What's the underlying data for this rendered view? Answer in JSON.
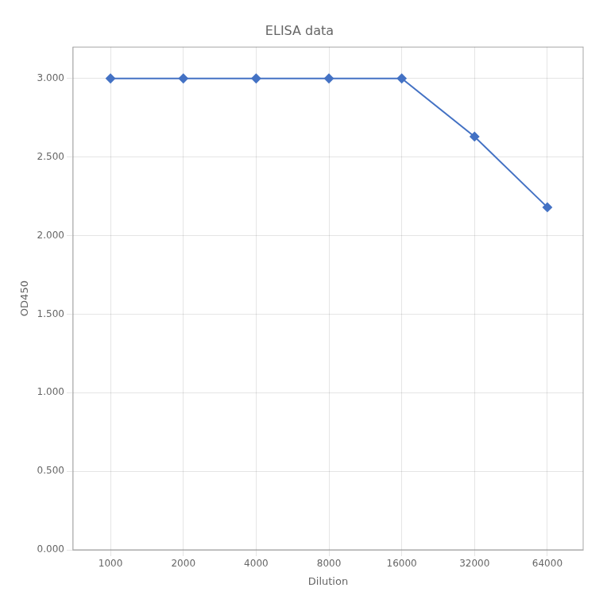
{
  "chart_data": {
    "type": "line",
    "title": "ELISA data",
    "x_label": "Dilution",
    "y_label": "OD450",
    "x": [
      1000,
      2000,
      4000,
      8000,
      16000,
      32000,
      64000
    ],
    "values": [
      3.0,
      3.0,
      3.0,
      3.0,
      3.0,
      2.63,
      2.18
    ],
    "color": "#4472c4",
    "marker": "diamond",
    "log": "x",
    "xlim": [
      700,
      90000
    ],
    "xticks": [
      1000,
      2000,
      4000,
      8000,
      16000,
      32000,
      64000
    ],
    "ylim": [
      0.0,
      3.2
    ],
    "yticks": [
      {
        "value": 0.0,
        "label": "0.000"
      },
      {
        "value": 0.5,
        "label": "0.500"
      },
      {
        "value": 1.0,
        "label": "1.000"
      },
      {
        "value": 1.5,
        "label": "1.500"
      },
      {
        "value": 2.0,
        "label": "2.000"
      },
      {
        "value": 2.5,
        "label": "2.500"
      },
      {
        "value": 3.0,
        "label": "3.000"
      }
    ],
    "grid": true
  }
}
